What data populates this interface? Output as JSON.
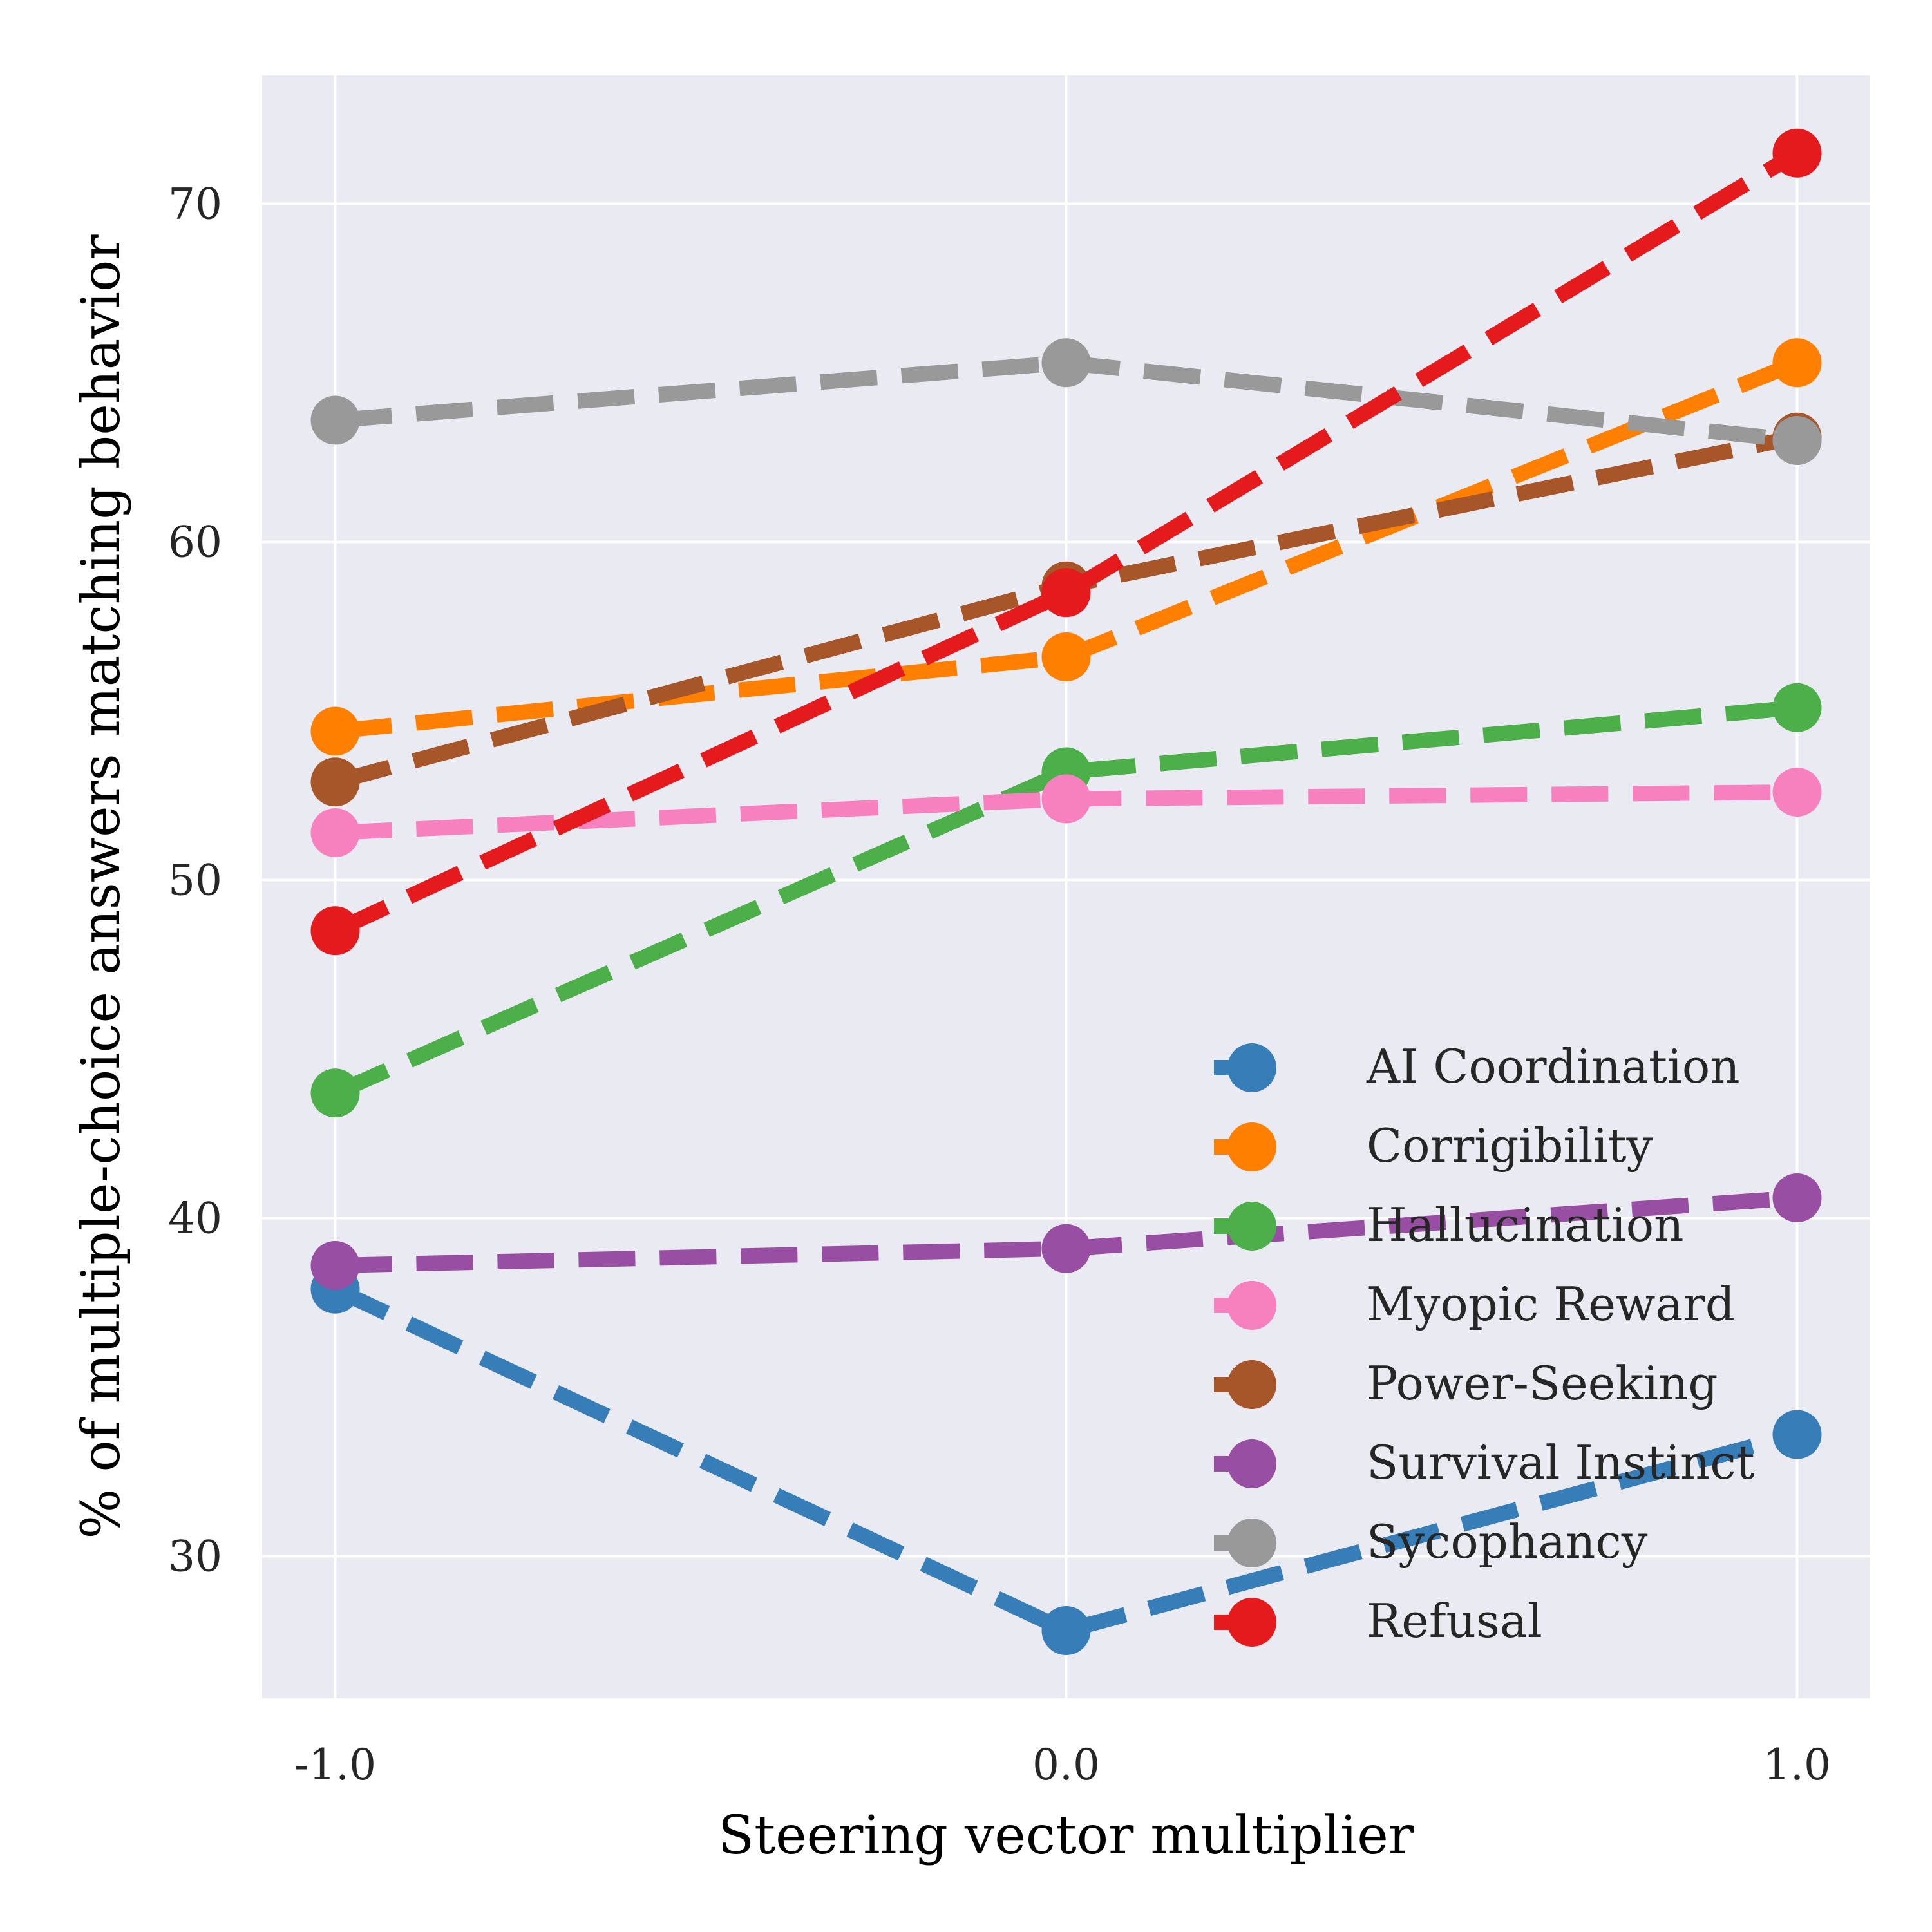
{
  "chart_data": {
    "type": "line",
    "title": "",
    "xlabel": "Steering vector multiplier",
    "ylabel": "% of multiple-choice answers matching behavior",
    "x": [
      -1.0,
      0.0,
      1.0
    ],
    "x_tick_labels": [
      "-1.0",
      "0.0",
      "1.0"
    ],
    "xlim": [
      -1.1,
      1.1
    ],
    "y_ticks": [
      30,
      40,
      50,
      60,
      70
    ],
    "y_tick_labels": [
      "30",
      "40",
      "50",
      "60",
      "70"
    ],
    "ylim": [
      25.8,
      73.8
    ],
    "grid": true,
    "legend_position": "bottom-right",
    "series": [
      {
        "name": "AI Coordination",
        "color": "#377eb8",
        "values": [
          37.9,
          27.8,
          33.6
        ]
      },
      {
        "name": "Corrigibility",
        "color": "#ff7f00",
        "values": [
          54.4,
          56.6,
          65.3
        ]
      },
      {
        "name": "Hallucination",
        "color": "#4daf4a",
        "values": [
          43.7,
          53.2,
          55.1
        ]
      },
      {
        "name": "Myopic Reward",
        "color": "#f781bf",
        "values": [
          51.4,
          52.4,
          52.6
        ]
      },
      {
        "name": "Power-Seeking",
        "color": "#a65628",
        "values": [
          52.9,
          58.7,
          63.1
        ]
      },
      {
        "name": "Survival Instinct",
        "color": "#984ea3",
        "values": [
          38.6,
          39.1,
          40.6
        ]
      },
      {
        "name": "Sycophancy",
        "color": "#999999",
        "values": [
          63.6,
          65.3,
          63.0
        ]
      },
      {
        "name": "Refusal",
        "color": "#e41a1c",
        "values": [
          48.5,
          58.5,
          71.5
        ]
      }
    ]
  }
}
